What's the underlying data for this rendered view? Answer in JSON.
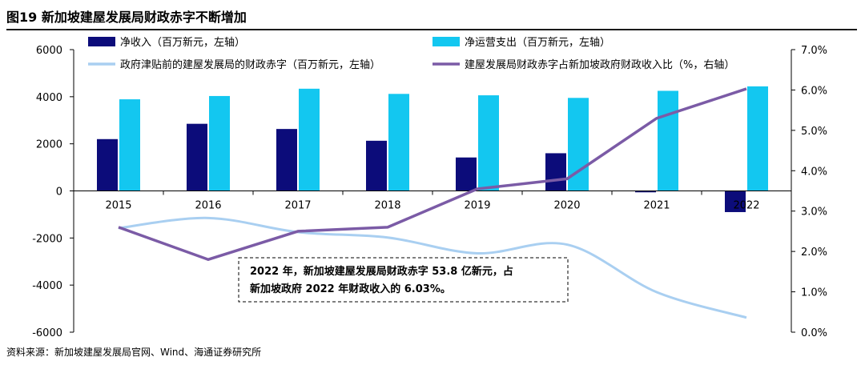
{
  "title": "图19 新加坡建屋发展局财政赤字不断增加",
  "source": "资料来源：新加坡建屋发展局官网、Wind、海通证券研究所",
  "annotation": {
    "line1": "2022 年，新加坡建屋发展局财政赤字 53.8 亿新元，占",
    "line2": "新加坡政府 2022 年财政收入的 6.03%。"
  },
  "colors": {
    "net_income": "#0c0c7a",
    "net_operating_expense": "#13c7f0",
    "deficit_before_subsidy": "#a9cff1",
    "deficit_ratio": "#7b5ba6"
  },
  "chart_data": {
    "type": "bar",
    "categories": [
      "2015",
      "2016",
      "2017",
      "2018",
      "2019",
      "2020",
      "2021",
      "2022"
    ],
    "left_axis": {
      "ylim": [
        -6000,
        6000
      ],
      "ticks": [
        "6000",
        "4000",
        "2000",
        "0",
        "-2000",
        "-4000",
        "-6000"
      ]
    },
    "right_axis": {
      "ylim": [
        0,
        7
      ],
      "ticks": [
        "7.0%",
        "6.0%",
        "5.0%",
        "4.0%",
        "3.0%",
        "2.0%",
        "1.0%",
        "0.0%"
      ]
    },
    "series": [
      {
        "name": "净收入（百万新元，左轴）",
        "type": "bar",
        "axis": "left",
        "values": [
          2200,
          2850,
          2630,
          2130,
          1420,
          1600,
          -60,
          -900
        ]
      },
      {
        "name": "净运营支出（百万新元，左轴）",
        "type": "bar",
        "axis": "left",
        "values": [
          3890,
          4030,
          4340,
          4120,
          4060,
          3950,
          4250,
          4440
        ]
      },
      {
        "name": "政府津贴前的建屋发展局的财政赤字（百万新元，左轴）",
        "type": "line",
        "axis": "left",
        "values": [
          -1580,
          -1150,
          -1750,
          -1980,
          -2650,
          -2280,
          -4300,
          -5380
        ]
      },
      {
        "name": "建屋发展局财政赤字占新加坡政府财政收入比（%，右轴）",
        "type": "line",
        "axis": "right",
        "values": [
          2.6,
          1.8,
          2.5,
          2.6,
          3.55,
          3.8,
          5.3,
          6.03
        ]
      }
    ],
    "legend_placement": "top",
    "grid": false
  }
}
